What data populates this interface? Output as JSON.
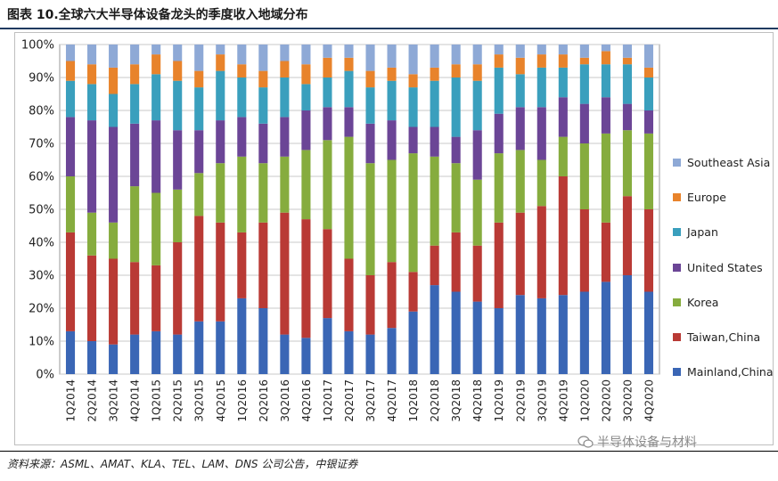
{
  "title": "图表 10.全球六大半导体设备龙头的季度收入地域分布",
  "footnote": "资料来源：ASML、AMAT、KLA、TEL、LAM、DNS 公司公告，中银证券",
  "watermark": "半导体设备与材料",
  "chart_data": {
    "type": "bar",
    "stacked": true,
    "percent": true,
    "categories": [
      "1Q2014",
      "2Q2014",
      "3Q2014",
      "4Q2014",
      "1Q2015",
      "2Q2015",
      "3Q2015",
      "4Q2015",
      "1Q2016",
      "2Q2016",
      "3Q2016",
      "4Q2016",
      "1Q2017",
      "2Q2017",
      "3Q2017",
      "4Q2017",
      "1Q2018",
      "2Q2018",
      "3Q2018",
      "4Q2018",
      "1Q2019",
      "2Q2019",
      "3Q2019",
      "4Q2019",
      "1Q2020",
      "2Q2020",
      "3Q2020",
      "4Q2020"
    ],
    "yticks": [
      "0%",
      "10%",
      "20%",
      "30%",
      "40%",
      "50%",
      "60%",
      "70%",
      "80%",
      "90%",
      "100%"
    ],
    "ylim": [
      0,
      100
    ],
    "grid": true,
    "legend_position": "right",
    "series": [
      {
        "name": "Mainland,China",
        "color": "#3a66b5",
        "values": [
          13,
          10,
          9,
          12,
          13,
          12,
          16,
          16,
          23,
          20,
          12,
          11,
          17,
          13,
          12,
          14,
          19,
          27,
          25,
          22,
          20,
          24,
          23,
          24,
          25,
          28,
          30,
          25
        ]
      },
      {
        "name": "Taiwan,China",
        "color": "#b93a35",
        "values": [
          30,
          26,
          26,
          22,
          20,
          28,
          32,
          30,
          20,
          26,
          37,
          36,
          27,
          22,
          18,
          20,
          12,
          12,
          18,
          17,
          26,
          25,
          28,
          36,
          25,
          18,
          24,
          25
        ]
      },
      {
        "name": "Korea",
        "color": "#86ac3e",
        "values": [
          17,
          13,
          11,
          23,
          22,
          16,
          13,
          18,
          23,
          18,
          17,
          21,
          27,
          37,
          34,
          31,
          36,
          27,
          21,
          20,
          21,
          19,
          14,
          12,
          20,
          27,
          20,
          23
        ]
      },
      {
        "name": "United States",
        "color": "#6b4596",
        "values": [
          18,
          28,
          29,
          19,
          22,
          18,
          13,
          13,
          12,
          12,
          12,
          12,
          10,
          9,
          12,
          12,
          8,
          9,
          8,
          15,
          12,
          13,
          16,
          12,
          12,
          11,
          8,
          7
        ]
      },
      {
        "name": "Japan",
        "color": "#3a9fbd",
        "values": [
          11,
          11,
          10,
          12,
          14,
          15,
          13,
          15,
          12,
          11,
          12,
          8,
          9,
          11,
          11,
          12,
          12,
          14,
          18,
          15,
          14,
          10,
          12,
          9,
          12,
          10,
          12,
          10
        ]
      },
      {
        "name": "Europe",
        "color": "#e8832b",
        "values": [
          6,
          6,
          8,
          6,
          6,
          6,
          5,
          5,
          4,
          5,
          5,
          6,
          6,
          4,
          5,
          4,
          4,
          4,
          4,
          5,
          4,
          5,
          4,
          4,
          2,
          4,
          2,
          3
        ]
      },
      {
        "name": "Southeast Asia",
        "color": "#8ea9d6",
        "values": [
          5,
          6,
          7,
          6,
          3,
          5,
          8,
          3,
          6,
          8,
          5,
          6,
          4,
          4,
          8,
          7,
          9,
          7,
          6,
          6,
          3,
          4,
          3,
          3,
          4,
          2,
          4,
          7
        ]
      }
    ]
  }
}
